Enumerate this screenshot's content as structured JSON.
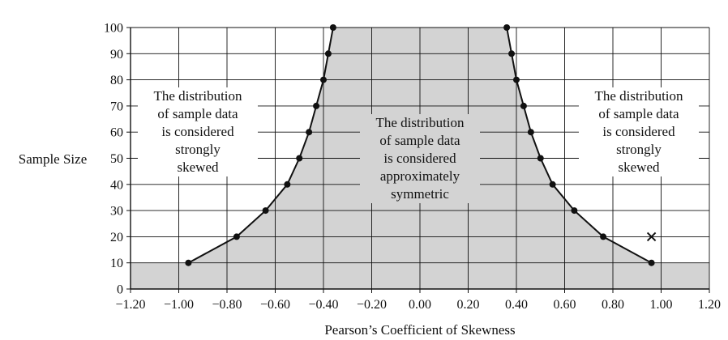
{
  "chart_data": {
    "type": "line",
    "xlabel": "Pearson’s Coefficient of Skewness",
    "ylabel": "Sample Size",
    "xlim": [
      -1.2,
      1.2
    ],
    "ylim": [
      0,
      100
    ],
    "x_ticks": [
      -1.2,
      -1.0,
      -0.8,
      -0.6,
      -0.4,
      -0.2,
      0.0,
      0.2,
      0.4,
      0.6,
      0.8,
      1.0,
      1.2
    ],
    "x_tick_labels": [
      "−1.20",
      "−1.00",
      "−0.80",
      "−0.60",
      "−0.40",
      "−0.20",
      "0.00",
      "0.20",
      "0.40",
      "0.60",
      "0.80",
      "1.00",
      "1.20"
    ],
    "y_ticks": [
      0,
      10,
      20,
      30,
      40,
      50,
      60,
      70,
      80,
      90,
      100
    ],
    "y_tick_labels": [
      "0",
      "10",
      "20",
      "30",
      "40",
      "50",
      "60",
      "70",
      "80",
      "90",
      "100"
    ],
    "grid": true,
    "series": [
      {
        "x": [
          -0.96,
          -0.76,
          -0.64,
          -0.55,
          -0.5,
          -0.46,
          -0.43,
          -0.4,
          -0.38,
          -0.36
        ],
        "y": [
          10,
          20,
          30,
          40,
          50,
          60,
          70,
          80,
          90,
          100
        ]
      },
      {
        "x": [
          0.96,
          0.76,
          0.64,
          0.55,
          0.5,
          0.46,
          0.43,
          0.4,
          0.38,
          0.36
        ],
        "y": [
          10,
          20,
          30,
          40,
          50,
          60,
          70,
          80,
          90,
          100
        ]
      }
    ],
    "marker_x": {
      "x": 0.96,
      "y": 20,
      "symbol": "×"
    },
    "annotations": {
      "left": [
        "The distribution",
        "of sample data",
        "is considered",
        "strongly",
        "skewed"
      ],
      "middle": [
        "The distribution",
        "of sample data",
        "is considered",
        "approximately",
        "symmetric"
      ],
      "right": [
        "The distribution",
        "of sample data",
        "is considered",
        "strongly",
        "skewed"
      ]
    },
    "colors": {
      "shade": "#d3d3d3",
      "grid": "#111111",
      "line": "#111111"
    }
  }
}
